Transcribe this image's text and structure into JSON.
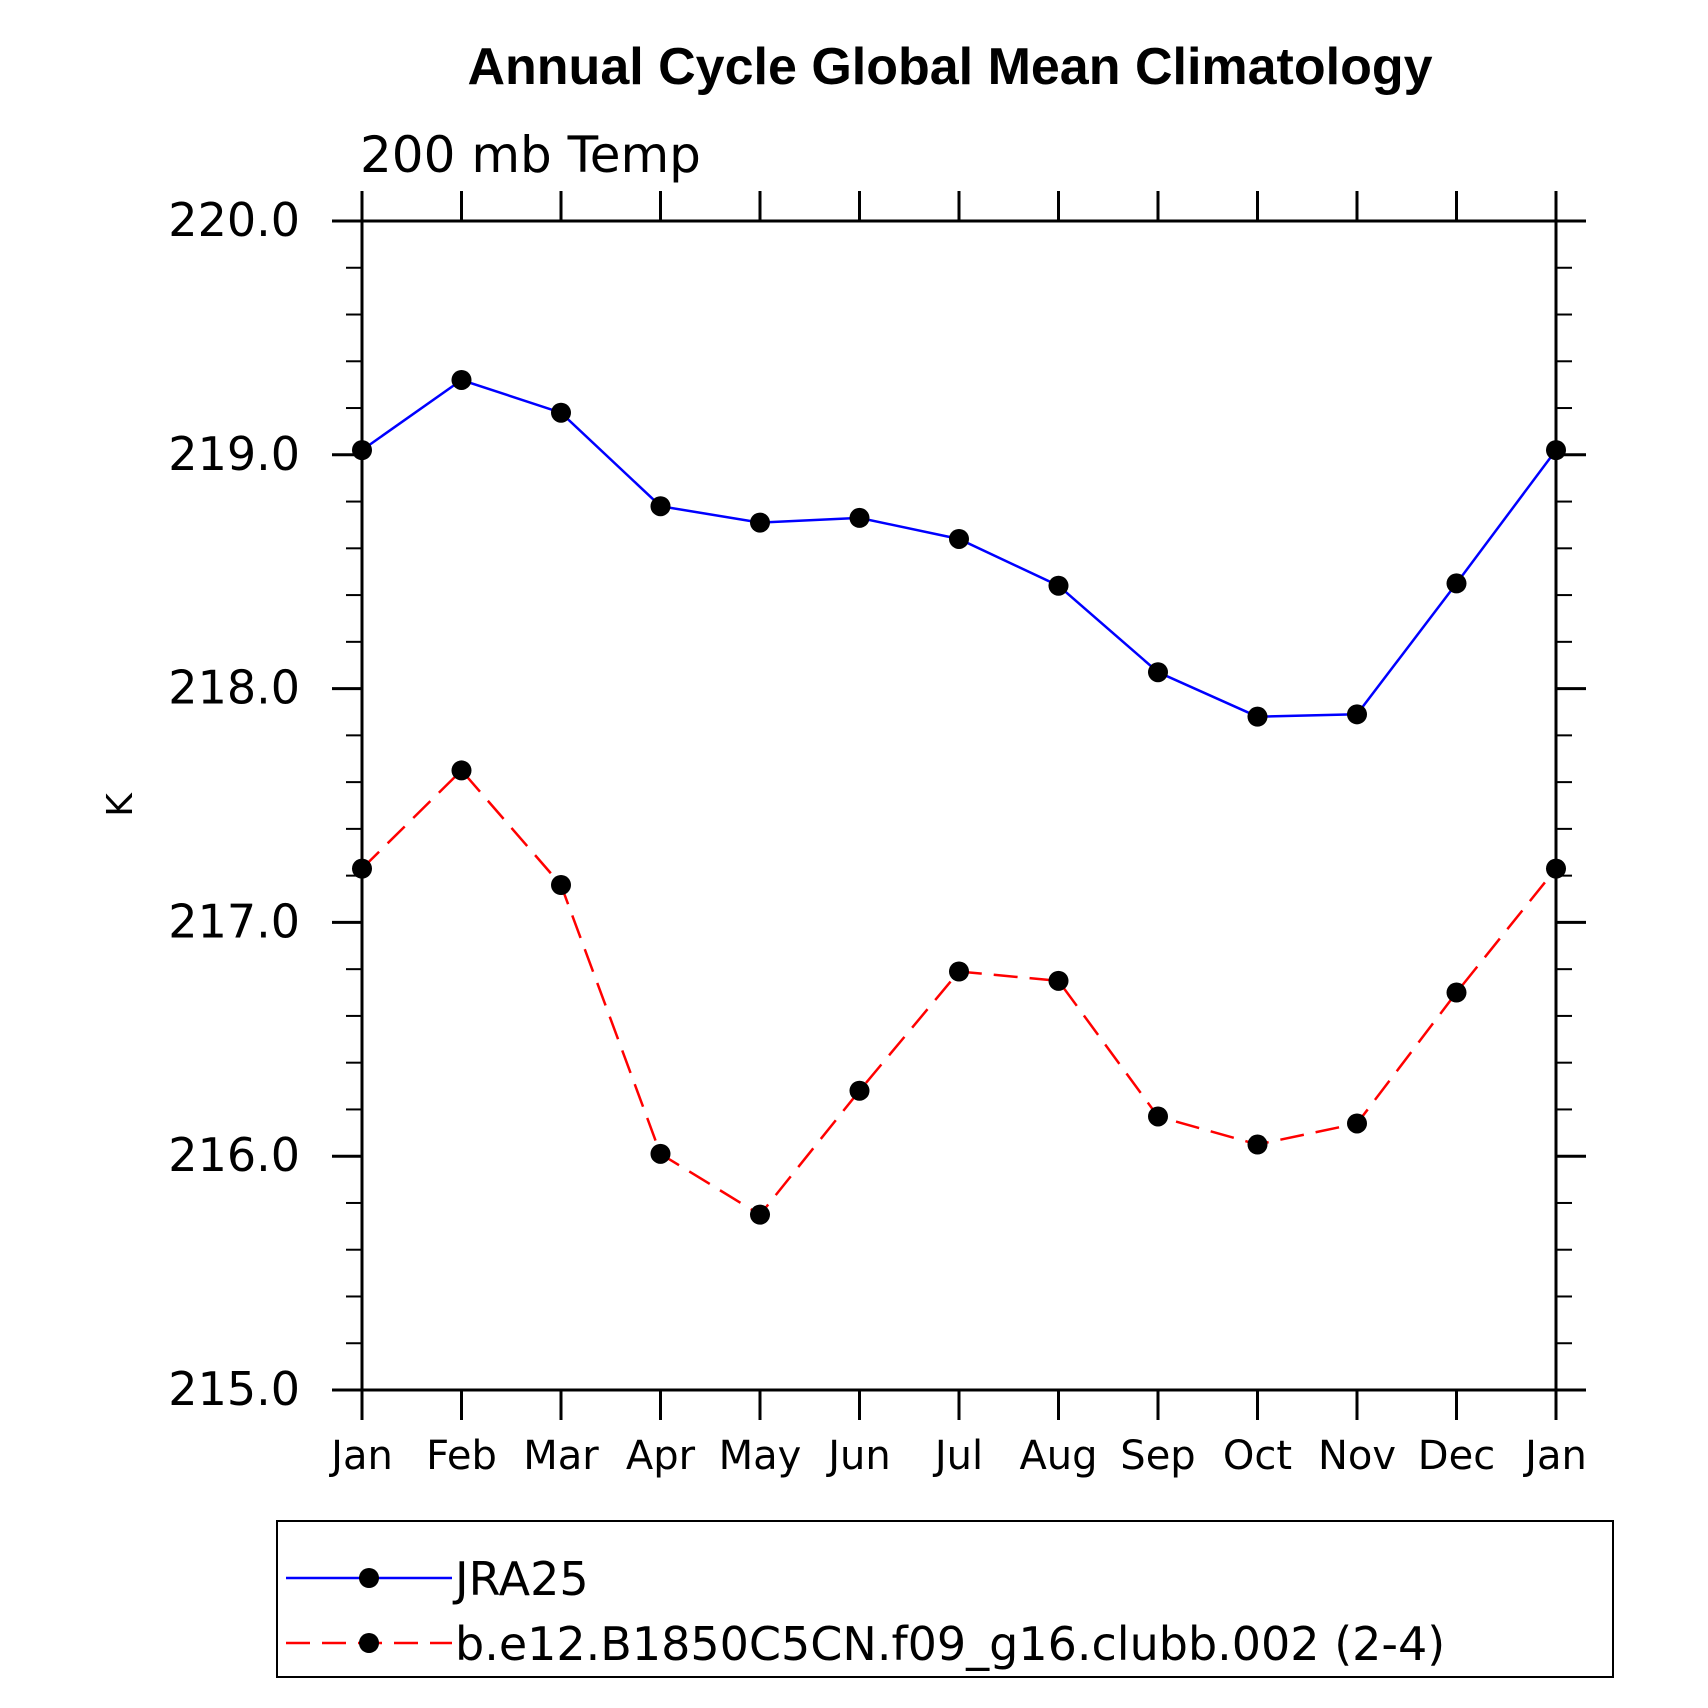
{
  "chart_data": {
    "type": "line",
    "title": "Annual Cycle Global Mean Climatology",
    "subtitle": "200 mb Temp",
    "ylabel": "K",
    "xlabel": "",
    "categories": [
      "Jan",
      "Feb",
      "Mar",
      "Apr",
      "May",
      "Jun",
      "Jul",
      "Aug",
      "Sep",
      "Oct",
      "Nov",
      "Dec",
      "Jan"
    ],
    "ylim": [
      215.0,
      220.0
    ],
    "yticks": [
      "215.0",
      "216.0",
      "217.0",
      "218.0",
      "219.0",
      "220.0"
    ],
    "grid": false,
    "legend_position": "bottom",
    "series": [
      {
        "name": "JRA25",
        "color": "#0000ff",
        "dash": "solid",
        "marker": "filled-circle",
        "values": [
          219.02,
          219.32,
          219.18,
          218.78,
          218.71,
          218.73,
          218.64,
          218.44,
          218.07,
          217.88,
          217.89,
          218.45,
          219.02
        ]
      },
      {
        "name": "b.e12.B1850C5CN.f09_g16.clubb.002 (2-4)",
        "color": "#ff0000",
        "dash": "dashed",
        "marker": "filled-circle",
        "values": [
          217.23,
          217.65,
          217.16,
          216.01,
          215.75,
          216.28,
          216.79,
          216.75,
          216.17,
          216.05,
          216.14,
          216.7,
          217.23
        ]
      }
    ]
  }
}
